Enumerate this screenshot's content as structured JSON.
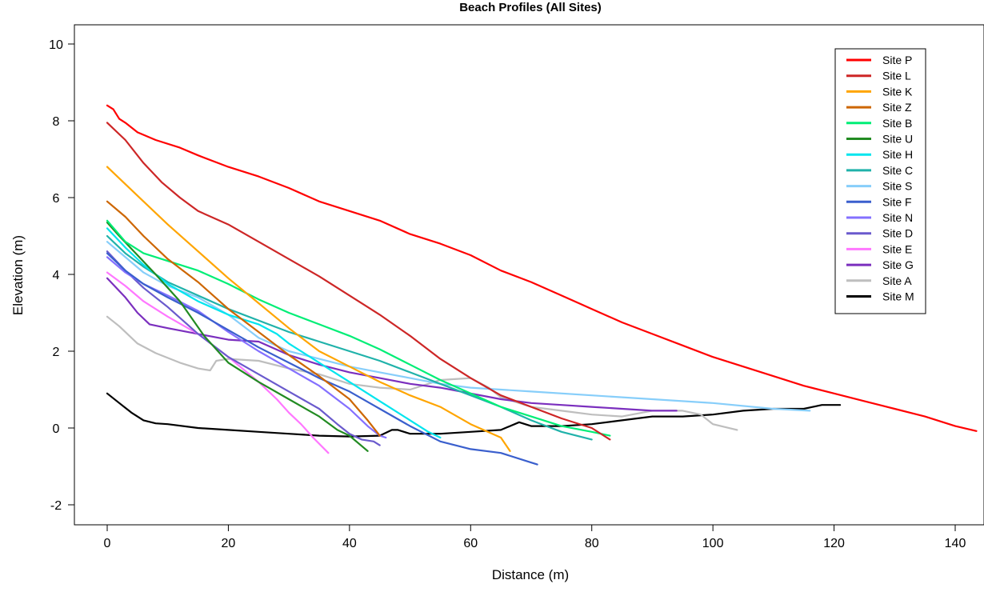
{
  "chart_data": {
    "type": "line",
    "title": "Beach Profiles (All Sites)",
    "xlabel": "Distance (m)",
    "ylabel": "Elevation (m)",
    "xlim": [
      -5,
      145
    ],
    "ylim": [
      -2.5,
      10.3
    ],
    "x_ticks": [
      0,
      20,
      40,
      60,
      80,
      100,
      120,
      140
    ],
    "y_ticks": [
      -2,
      0,
      2,
      4,
      6,
      8,
      10
    ],
    "grid": false,
    "legend_position": "top-right",
    "series": [
      {
        "name": "Site P",
        "color": "#ff0000",
        "points": [
          [
            0,
            8.4
          ],
          [
            1,
            8.3
          ],
          [
            2,
            8.05
          ],
          [
            3,
            7.95
          ],
          [
            5,
            7.7
          ],
          [
            8,
            7.5
          ],
          [
            12,
            7.3
          ],
          [
            15,
            7.1
          ],
          [
            20,
            6.8
          ],
          [
            25,
            6.55
          ],
          [
            30,
            6.25
          ],
          [
            35,
            5.9
          ],
          [
            40,
            5.65
          ],
          [
            45,
            5.4
          ],
          [
            50,
            5.05
          ],
          [
            55,
            4.8
          ],
          [
            60,
            4.5
          ],
          [
            65,
            4.1
          ],
          [
            70,
            3.8
          ],
          [
            75,
            3.45
          ],
          [
            80,
            3.1
          ],
          [
            85,
            2.75
          ],
          [
            90,
            2.45
          ],
          [
            95,
            2.15
          ],
          [
            100,
            1.85
          ],
          [
            105,
            1.6
          ],
          [
            110,
            1.35
          ],
          [
            115,
            1.1
          ],
          [
            120,
            0.9
          ],
          [
            125,
            0.7
          ],
          [
            130,
            0.5
          ],
          [
            135,
            0.3
          ],
          [
            140,
            0.05
          ],
          [
            143.5,
            -0.08
          ]
        ]
      },
      {
        "name": "Site L",
        "color": "#cd2626",
        "points": [
          [
            0,
            7.95
          ],
          [
            3,
            7.5
          ],
          [
            6,
            6.9
          ],
          [
            9,
            6.4
          ],
          [
            12,
            6.0
          ],
          [
            15,
            5.65
          ],
          [
            20,
            5.3
          ],
          [
            25,
            4.85
          ],
          [
            30,
            4.4
          ],
          [
            35,
            3.95
          ],
          [
            40,
            3.45
          ],
          [
            45,
            2.95
          ],
          [
            50,
            2.4
          ],
          [
            55,
            1.8
          ],
          [
            60,
            1.3
          ],
          [
            65,
            0.85
          ],
          [
            70,
            0.55
          ],
          [
            75,
            0.25
          ],
          [
            80,
            0.0
          ],
          [
            83,
            -0.3
          ]
        ]
      },
      {
        "name": "Site K",
        "color": "#ffa500",
        "points": [
          [
            0,
            6.8
          ],
          [
            3,
            6.35
          ],
          [
            6,
            5.9
          ],
          [
            10,
            5.3
          ],
          [
            15,
            4.6
          ],
          [
            20,
            3.9
          ],
          [
            25,
            3.25
          ],
          [
            30,
            2.6
          ],
          [
            35,
            2.0
          ],
          [
            40,
            1.6
          ],
          [
            45,
            1.2
          ],
          [
            50,
            0.85
          ],
          [
            55,
            0.55
          ],
          [
            60,
            0.1
          ],
          [
            65,
            -0.25
          ],
          [
            66.5,
            -0.6
          ]
        ]
      },
      {
        "name": "Site Z",
        "color": "#cd6600",
        "points": [
          [
            0,
            5.9
          ],
          [
            3,
            5.5
          ],
          [
            6,
            5.0
          ],
          [
            10,
            4.4
          ],
          [
            15,
            3.8
          ],
          [
            20,
            3.1
          ],
          [
            25,
            2.5
          ],
          [
            30,
            1.9
          ],
          [
            35,
            1.35
          ],
          [
            40,
            0.75
          ],
          [
            43,
            0.2
          ],
          [
            45,
            -0.2
          ]
        ]
      },
      {
        "name": "Site B",
        "color": "#00ee76",
        "points": [
          [
            0,
            5.4
          ],
          [
            3,
            4.85
          ],
          [
            6,
            4.55
          ],
          [
            10,
            4.35
          ],
          [
            15,
            4.1
          ],
          [
            20,
            3.75
          ],
          [
            25,
            3.35
          ],
          [
            30,
            3.0
          ],
          [
            35,
            2.7
          ],
          [
            40,
            2.4
          ],
          [
            45,
            2.05
          ],
          [
            50,
            1.65
          ],
          [
            55,
            1.25
          ],
          [
            60,
            0.9
          ],
          [
            65,
            0.55
          ],
          [
            70,
            0.3
          ],
          [
            75,
            0.05
          ],
          [
            80,
            -0.1
          ],
          [
            83,
            -0.2
          ]
        ]
      },
      {
        "name": "Site U",
        "color": "#228b22",
        "points": [
          [
            0,
            5.35
          ],
          [
            2,
            5.0
          ],
          [
            5,
            4.5
          ],
          [
            8,
            4.0
          ],
          [
            12,
            3.3
          ],
          [
            16,
            2.4
          ],
          [
            20,
            1.7
          ],
          [
            25,
            1.2
          ],
          [
            30,
            0.75
          ],
          [
            35,
            0.3
          ],
          [
            38,
            -0.05
          ],
          [
            40,
            -0.2
          ],
          [
            43,
            -0.6
          ]
        ]
      },
      {
        "name": "Site H",
        "color": "#00e5ee",
        "points": [
          [
            0,
            5.2
          ],
          [
            3,
            4.7
          ],
          [
            6,
            4.25
          ],
          [
            10,
            3.75
          ],
          [
            15,
            3.3
          ],
          [
            20,
            2.95
          ],
          [
            25,
            2.7
          ],
          [
            28,
            2.45
          ],
          [
            30,
            2.2
          ],
          [
            35,
            1.7
          ],
          [
            40,
            1.2
          ],
          [
            45,
            0.7
          ],
          [
            50,
            0.2
          ],
          [
            53,
            -0.1
          ],
          [
            55,
            -0.25
          ]
        ]
      },
      {
        "name": "Site C",
        "color": "#20b2aa",
        "points": [
          [
            0,
            5.0
          ],
          [
            3,
            4.55
          ],
          [
            6,
            4.2
          ],
          [
            10,
            3.8
          ],
          [
            15,
            3.45
          ],
          [
            20,
            3.1
          ],
          [
            25,
            2.8
          ],
          [
            30,
            2.5
          ],
          [
            35,
            2.25
          ],
          [
            40,
            2.0
          ],
          [
            45,
            1.75
          ],
          [
            50,
            1.45
          ],
          [
            55,
            1.15
          ],
          [
            60,
            0.85
          ],
          [
            65,
            0.55
          ],
          [
            70,
            0.2
          ],
          [
            75,
            -0.1
          ],
          [
            80,
            -0.3
          ]
        ]
      },
      {
        "name": "Site S",
        "color": "#87cefa",
        "points": [
          [
            0,
            4.85
          ],
          [
            3,
            4.45
          ],
          [
            6,
            4.05
          ],
          [
            10,
            3.7
          ],
          [
            15,
            3.4
          ],
          [
            20,
            2.95
          ],
          [
            25,
            2.35
          ],
          [
            30,
            2.0
          ],
          [
            35,
            1.8
          ],
          [
            40,
            1.6
          ],
          [
            45,
            1.45
          ],
          [
            50,
            1.3
          ],
          [
            55,
            1.15
          ],
          [
            60,
            1.05
          ],
          [
            65,
            1.0
          ],
          [
            70,
            0.95
          ],
          [
            80,
            0.85
          ],
          [
            90,
            0.75
          ],
          [
            100,
            0.65
          ],
          [
            110,
            0.5
          ],
          [
            116,
            0.45
          ]
        ]
      },
      {
        "name": "Site F",
        "color": "#3a5fcd",
        "points": [
          [
            0,
            4.55
          ],
          [
            3,
            4.1
          ],
          [
            6,
            3.75
          ],
          [
            10,
            3.4
          ],
          [
            15,
            3.0
          ],
          [
            20,
            2.55
          ],
          [
            25,
            2.1
          ],
          [
            30,
            1.7
          ],
          [
            35,
            1.3
          ],
          [
            40,
            0.95
          ],
          [
            45,
            0.5
          ],
          [
            50,
            0.05
          ],
          [
            55,
            -0.35
          ],
          [
            60,
            -0.55
          ],
          [
            65,
            -0.65
          ],
          [
            70,
            -0.9
          ],
          [
            71,
            -0.95
          ]
        ]
      },
      {
        "name": "Site N",
        "color": "#8470ff",
        "points": [
          [
            0,
            4.45
          ],
          [
            3,
            4.05
          ],
          [
            6,
            3.75
          ],
          [
            10,
            3.45
          ],
          [
            15,
            3.05
          ],
          [
            20,
            2.5
          ],
          [
            25,
            2.0
          ],
          [
            30,
            1.55
          ],
          [
            35,
            1.1
          ],
          [
            40,
            0.5
          ],
          [
            43,
            0.05
          ],
          [
            45,
            -0.2
          ],
          [
            46,
            -0.25
          ]
        ]
      },
      {
        "name": "Site D",
        "color": "#6a5acd",
        "points": [
          [
            0,
            4.6
          ],
          [
            3,
            4.1
          ],
          [
            6,
            3.65
          ],
          [
            10,
            3.15
          ],
          [
            15,
            2.45
          ],
          [
            20,
            1.85
          ],
          [
            25,
            1.4
          ],
          [
            30,
            0.95
          ],
          [
            35,
            0.5
          ],
          [
            38,
            0.1
          ],
          [
            40,
            -0.15
          ],
          [
            42,
            -0.3
          ],
          [
            44,
            -0.35
          ],
          [
            45,
            -0.45
          ]
        ]
      },
      {
        "name": "Site E",
        "color": "#ff77ff",
        "points": [
          [
            0,
            4.05
          ],
          [
            3,
            3.7
          ],
          [
            6,
            3.3
          ],
          [
            10,
            2.9
          ],
          [
            15,
            2.45
          ],
          [
            20,
            1.85
          ],
          [
            25,
            1.2
          ],
          [
            28,
            0.75
          ],
          [
            30,
            0.4
          ],
          [
            32,
            0.1
          ],
          [
            34,
            -0.25
          ],
          [
            36.5,
            -0.65
          ]
        ]
      },
      {
        "name": "Site G",
        "color": "#7b2fbe",
        "points": [
          [
            0,
            3.9
          ],
          [
            3,
            3.4
          ],
          [
            5,
            3.0
          ],
          [
            7,
            2.7
          ],
          [
            10,
            2.6
          ],
          [
            15,
            2.45
          ],
          [
            20,
            2.3
          ],
          [
            25,
            2.25
          ],
          [
            30,
            1.9
          ],
          [
            35,
            1.65
          ],
          [
            40,
            1.45
          ],
          [
            45,
            1.3
          ],
          [
            50,
            1.15
          ],
          [
            55,
            1.05
          ],
          [
            60,
            0.9
          ],
          [
            65,
            0.75
          ],
          [
            70,
            0.65
          ],
          [
            75,
            0.6
          ],
          [
            80,
            0.55
          ],
          [
            85,
            0.5
          ],
          [
            90,
            0.45
          ],
          [
            94,
            0.45
          ]
        ]
      },
      {
        "name": "Site A",
        "color": "#bebebe",
        "points": [
          [
            0,
            2.9
          ],
          [
            2,
            2.65
          ],
          [
            5,
            2.2
          ],
          [
            8,
            1.95
          ],
          [
            12,
            1.7
          ],
          [
            15,
            1.55
          ],
          [
            17,
            1.5
          ],
          [
            18,
            1.75
          ],
          [
            20,
            1.8
          ],
          [
            25,
            1.75
          ],
          [
            30,
            1.55
          ],
          [
            35,
            1.4
          ],
          [
            40,
            1.15
          ],
          [
            45,
            1.05
          ],
          [
            50,
            1.0
          ],
          [
            55,
            1.25
          ],
          [
            60,
            1.3
          ],
          [
            63,
            1.05
          ],
          [
            65,
            0.8
          ],
          [
            70,
            0.55
          ],
          [
            75,
            0.45
          ],
          [
            80,
            0.35
          ],
          [
            85,
            0.3
          ],
          [
            90,
            0.45
          ],
          [
            95,
            0.45
          ],
          [
            98,
            0.35
          ],
          [
            100,
            0.1
          ],
          [
            104,
            -0.05
          ]
        ]
      },
      {
        "name": "Site M",
        "color": "#000000",
        "points": [
          [
            0,
            0.9
          ],
          [
            2,
            0.65
          ],
          [
            4,
            0.4
          ],
          [
            6,
            0.2
          ],
          [
            8,
            0.12
          ],
          [
            10,
            0.1
          ],
          [
            15,
            0.0
          ],
          [
            20,
            -0.05
          ],
          [
            25,
            -0.1
          ],
          [
            30,
            -0.15
          ],
          [
            35,
            -0.2
          ],
          [
            40,
            -0.22
          ],
          [
            45,
            -0.2
          ],
          [
            47,
            -0.05
          ],
          [
            48,
            -0.05
          ],
          [
            50,
            -0.15
          ],
          [
            55,
            -0.15
          ],
          [
            60,
            -0.1
          ],
          [
            65,
            -0.05
          ],
          [
            68,
            0.15
          ],
          [
            70,
            0.05
          ],
          [
            75,
            0.05
          ],
          [
            80,
            0.1
          ],
          [
            85,
            0.2
          ],
          [
            90,
            0.3
          ],
          [
            95,
            0.3
          ],
          [
            100,
            0.35
          ],
          [
            105,
            0.45
          ],
          [
            110,
            0.5
          ],
          [
            115,
            0.5
          ],
          [
            118,
            0.6
          ],
          [
            121,
            0.6
          ]
        ]
      }
    ]
  }
}
